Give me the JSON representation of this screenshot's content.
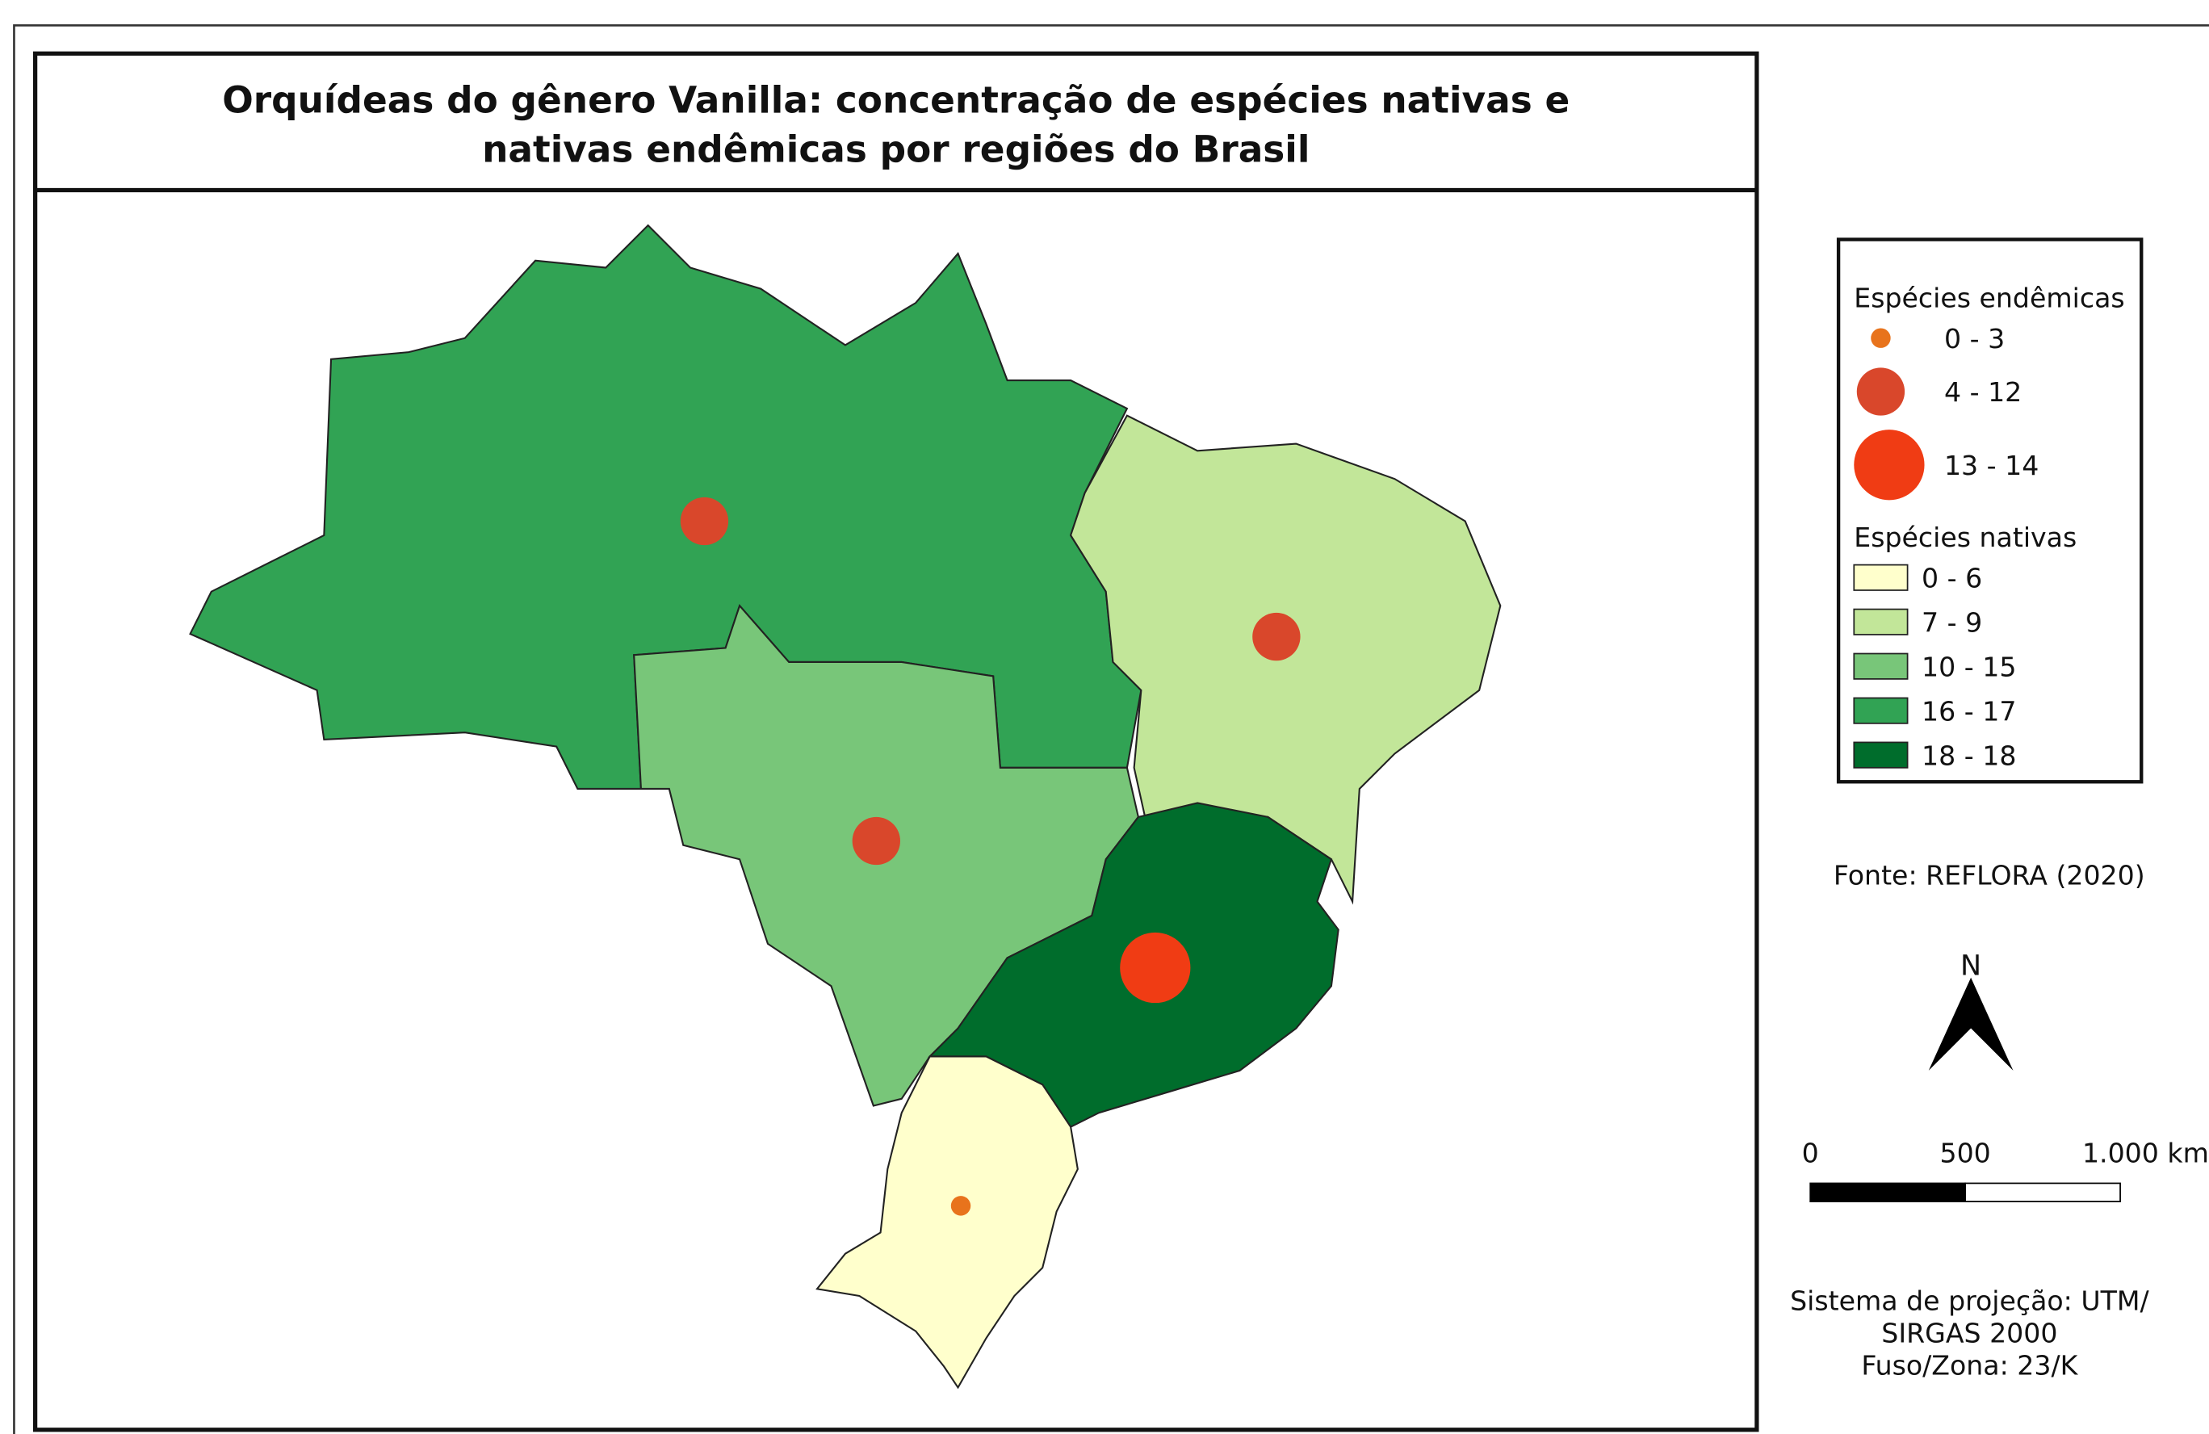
{
  "title": [
    "Orquídeas do gênero Vanilla: concentração de espécies nativas e",
    "nativas endêmicas por regiões do Brasil"
  ],
  "legend": {
    "endemic": {
      "title": "Espécies endêmicas",
      "items": [
        "0 - 3",
        "4 - 12",
        "13 - 14"
      ]
    },
    "native": {
      "title": "Espécies nativas",
      "items": [
        "0 - 6",
        "7 - 9",
        "10 - 15",
        "16 - 17",
        "18 - 18"
      ]
    }
  },
  "source": "Fonte: REFLORA (2020)",
  "north": "N",
  "scale": [
    "0",
    "500",
    "1.000 km"
  ],
  "projection": [
    "Sistema de projeção: UTM/",
    "SIRGAS 2000",
    "Fuso/Zona: 23/K"
  ]
}
